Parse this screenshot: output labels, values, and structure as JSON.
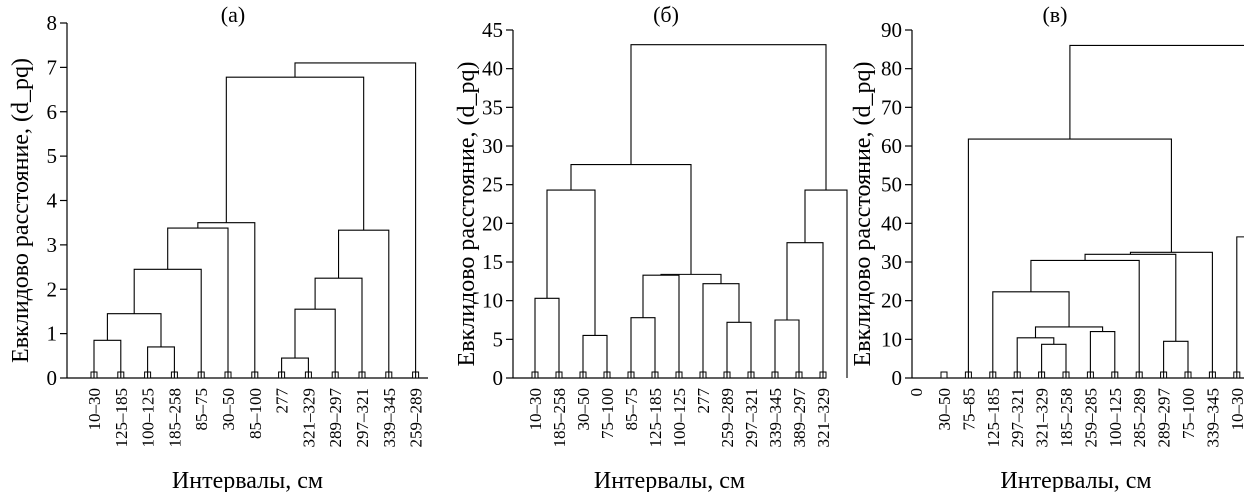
{
  "chart_data": [
    {
      "type": "dendrogram",
      "title": "(а)",
      "ylabel": "Евклидово расстояние, (d_pq)",
      "xlabel": "Интервалы, см",
      "ylim": [
        0,
        8
      ],
      "yticks": [
        "0",
        "1",
        "2",
        "3",
        "4",
        "5",
        "6",
        "7",
        "8"
      ],
      "leaves": [
        "10–30",
        "125–185",
        "100–125",
        "185–258",
        "85–75",
        "30–50",
        "85–100",
        "277",
        "321–329",
        "289–297",
        "297–321",
        "339–345",
        "259–289"
      ],
      "merges": [
        {
          "a": 0,
          "b": 1,
          "h": 0.85
        },
        {
          "a": 2,
          "b": 3,
          "h": 0.7
        },
        {
          "a": 7,
          "b": 8,
          "h": 0.45
        },
        {
          "a": "m1",
          "b": "m2",
          "h": 1.45
        },
        {
          "a": "m3",
          "b": 9,
          "h": 1.55
        },
        {
          "a": "m5",
          "b": 10,
          "h": 2.25
        },
        {
          "a": "m4",
          "b": 4,
          "h": 2.45
        },
        {
          "a": "m6",
          "b": 11,
          "h": 3.33
        },
        {
          "a": "m7",
          "b": 5,
          "h": 3.38
        },
        {
          "a": "m9",
          "b": 6,
          "h": 3.5
        },
        {
          "a": "m10",
          "b": "m8",
          "h": 6.78
        },
        {
          "a": "m11",
          "b": 12,
          "h": 7.1
        }
      ]
    },
    {
      "type": "dendrogram",
      "title": "(б)",
      "ylabel": "Евклидово расстояние, (d_pq)",
      "xlabel": "Интервалы, см",
      "ylim": [
        0,
        45
      ],
      "yticks": [
        "0",
        "5",
        "10",
        "15",
        "20",
        "25",
        "30",
        "35",
        "40",
        "45"
      ],
      "leaves": [
        "10–30",
        "185–258",
        "30–50",
        "75–100",
        "85–75",
        "125–185",
        "100–125",
        "277",
        "259–289",
        "297–321",
        "339–345",
        "389–297",
        "321–329"
      ],
      "merges": [
        {
          "a": 2,
          "b": 3,
          "h": 5.5
        },
        {
          "a": 8,
          "b": 9,
          "h": 7.2
        },
        {
          "a": 10,
          "b": 11,
          "h": 7.5
        },
        {
          "a": 4,
          "b": 5,
          "h": 7.8
        },
        {
          "a": 0,
          "b": 1,
          "h": 10.3
        },
        {
          "a": 7,
          "b": "m2",
          "h": 12.2
        },
        {
          "a": "m4",
          "b": 6,
          "h": 13.3
        },
        {
          "a": "m7",
          "b": "m6",
          "h": 13.4
        },
        {
          "a": "m3",
          "b": 12,
          "h": 17.5
        },
        {
          "a": "m5",
          "b": "m1",
          "h": 24.3
        },
        {
          "a": "m9",
          "b": 13,
          "h": 24.3
        },
        {
          "a": "m10",
          "b": "m8",
          "h": 27.6
        },
        {
          "a": "m12",
          "b": "m11",
          "h": 43.1
        }
      ]
    },
    {
      "type": "dendrogram",
      "title": "(в)",
      "ylabel": "Евклидово расстояние, (d_pq)",
      "xlabel": "Интервалы, см",
      "ylim": [
        0,
        90
      ],
      "yticks": [
        "0",
        "10",
        "20",
        "30",
        "40",
        "50",
        "60",
        "70",
        "80",
        "90"
      ],
      "leaves": [
        "30–50",
        "75–85",
        "125–185",
        "297–321",
        "321–329",
        "185–258",
        "259–285",
        "100–125",
        "285–289",
        "289–297",
        "75–100",
        "339–345",
        "10–30"
      ],
      "extra_xtick": "0",
      "merges": [
        {
          "a": 4,
          "b": 5,
          "h": 8.7
        },
        {
          "a": 9,
          "b": 10,
          "h": 9.5
        },
        {
          "a": 3,
          "b": "m1",
          "h": 10.4
        },
        {
          "a": 6,
          "b": 7,
          "h": 12.0
        },
        {
          "a": "m3",
          "b": "m4",
          "h": 13.2
        },
        {
          "a": 2,
          "b": "m5",
          "h": 22.3
        },
        {
          "a": "m6",
          "b": 8,
          "h": 30.4
        },
        {
          "a": "m7",
          "b": "m2",
          "h": 32.0
        },
        {
          "a": "m8",
          "b": 11,
          "h": 32.5
        },
        {
          "a": 12,
          "b": 13,
          "h": 36.5
        },
        {
          "a": 1,
          "b": "m9",
          "h": 61.8
        },
        {
          "a": "m11",
          "b": "m10",
          "h": 86.0
        }
      ]
    }
  ]
}
